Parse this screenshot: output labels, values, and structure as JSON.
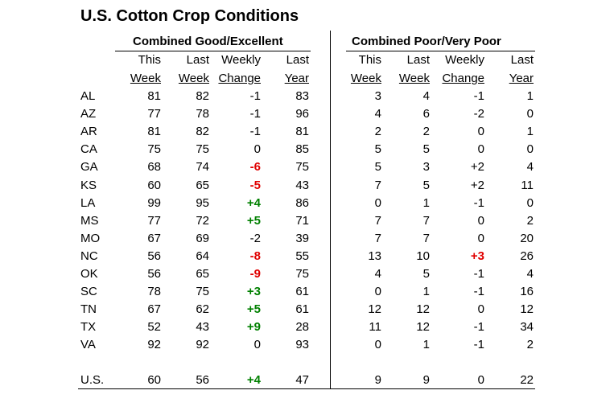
{
  "title": "U.S. Cotton Crop Conditions",
  "groups": [
    {
      "label": "Combined Good/Excellent",
      "columns": [
        [
          "This",
          "Week"
        ],
        [
          "Last",
          "Week"
        ],
        [
          "Weekly",
          "Change"
        ],
        [
          "Last",
          "Year"
        ]
      ]
    },
    {
      "label": "Combined Poor/Very Poor",
      "columns": [
        [
          "This",
          "Week"
        ],
        [
          "Last",
          "Week"
        ],
        [
          "Weekly",
          "Change"
        ],
        [
          "Last",
          "Year"
        ]
      ]
    }
  ],
  "rows": [
    {
      "state": "AL",
      "values": [
        "81",
        "82",
        "-1",
        "83",
        "3",
        "4",
        "-1",
        "1"
      ]
    },
    {
      "state": "AZ",
      "values": [
        "77",
        "78",
        "-1",
        "96",
        "4",
        "6",
        "-2",
        "0"
      ]
    },
    {
      "state": "AR",
      "values": [
        "81",
        "82",
        "-1",
        "81",
        "2",
        "2",
        "0",
        "1"
      ]
    },
    {
      "state": "CA",
      "values": [
        "75",
        "75",
        "0",
        "85",
        "5",
        "5",
        "0",
        "0"
      ]
    },
    {
      "state": "GA",
      "values": [
        "68",
        "74",
        {
          "text": "-6",
          "color": "#e00000"
        },
        "75",
        "5",
        "3",
        "+2",
        "4"
      ]
    },
    {
      "state": "KS",
      "values": [
        "60",
        "65",
        {
          "text": "-5",
          "color": "#e00000"
        },
        "43",
        "7",
        "5",
        "+2",
        "11"
      ]
    },
    {
      "state": "LA",
      "values": [
        "99",
        "95",
        {
          "text": "+4",
          "color": "#008000"
        },
        "86",
        "0",
        "1",
        "-1",
        "0"
      ]
    },
    {
      "state": "MS",
      "values": [
        "77",
        "72",
        {
          "text": "+5",
          "color": "#008000"
        },
        "71",
        "7",
        "7",
        "0",
        "2"
      ]
    },
    {
      "state": "MO",
      "values": [
        "67",
        "69",
        "-2",
        "39",
        "7",
        "7",
        "0",
        "20"
      ]
    },
    {
      "state": "NC",
      "values": [
        "56",
        "64",
        {
          "text": "-8",
          "color": "#e00000"
        },
        "55",
        "13",
        "10",
        {
          "text": "+3",
          "color": "#e00000"
        },
        "26"
      ]
    },
    {
      "state": "OK",
      "values": [
        "56",
        "65",
        {
          "text": "-9",
          "color": "#e00000"
        },
        "75",
        "4",
        "5",
        "-1",
        "4"
      ]
    },
    {
      "state": "SC",
      "values": [
        "78",
        "75",
        {
          "text": "+3",
          "color": "#008000"
        },
        "61",
        "0",
        "1",
        "-1",
        "16"
      ]
    },
    {
      "state": "TN",
      "values": [
        "67",
        "62",
        {
          "text": "+5",
          "color": "#008000"
        },
        "61",
        "12",
        "12",
        "0",
        "12"
      ]
    },
    {
      "state": "TX",
      "values": [
        "52",
        "43",
        {
          "text": "+9",
          "color": "#008000"
        },
        "28",
        "11",
        "12",
        "-1",
        "34"
      ]
    },
    {
      "state": "VA",
      "values": [
        "92",
        "92",
        "0",
        "93",
        "0",
        "1",
        "-1",
        "2"
      ]
    }
  ],
  "total": {
    "state": "U.S.",
    "values": [
      "60",
      "56",
      {
        "text": "+4",
        "color": "#008000"
      },
      "47",
      "9",
      "9",
      "0",
      "22"
    ]
  }
}
